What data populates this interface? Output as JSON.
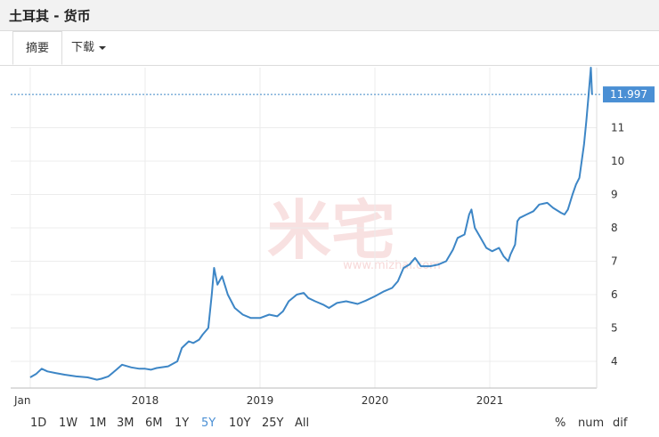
{
  "header": {
    "title": "土耳其 - 货币"
  },
  "tabs": {
    "summary": "摘要",
    "download": "下载"
  },
  "watermark": {
    "text": "米宅",
    "url": "www.mizhai.com"
  },
  "ranges": [
    "1D",
    "1W",
    "1M",
    "3M",
    "6M",
    "1Y",
    "5Y",
    "10Y",
    "25Y",
    "All"
  ],
  "active_range": "5Y",
  "tools": [
    "%",
    "num",
    "dif"
  ],
  "colors": {
    "line": "#3d86c6",
    "accent": "#4a8fd4",
    "watermark": "#f4c9c9"
  },
  "chart_data": {
    "type": "line",
    "title": "",
    "xlabel": "",
    "ylabel": "",
    "x_tick_labels": [
      "Jan",
      "2018",
      "2019",
      "2020",
      "2021"
    ],
    "y_tick_labels": [
      "4",
      "5",
      "6",
      "7",
      "8",
      "9",
      "10",
      "11"
    ],
    "ylim": [
      3.2,
      12.8
    ],
    "current_value": "11.997",
    "series": [
      {
        "values": [
          [
            2017.0,
            3.52
          ],
          [
            2017.05,
            3.62
          ],
          [
            2017.1,
            3.78
          ],
          [
            2017.15,
            3.7
          ],
          [
            2017.22,
            3.65
          ],
          [
            2017.3,
            3.6
          ],
          [
            2017.4,
            3.55
          ],
          [
            2017.5,
            3.52
          ],
          [
            2017.58,
            3.45
          ],
          [
            2017.62,
            3.48
          ],
          [
            2017.68,
            3.55
          ],
          [
            2017.75,
            3.75
          ],
          [
            2017.8,
            3.9
          ],
          [
            2017.88,
            3.82
          ],
          [
            2017.95,
            3.78
          ],
          [
            2018.0,
            3.78
          ],
          [
            2018.05,
            3.75
          ],
          [
            2018.1,
            3.8
          ],
          [
            2018.2,
            3.85
          ],
          [
            2018.28,
            4.0
          ],
          [
            2018.32,
            4.4
          ],
          [
            2018.38,
            4.6
          ],
          [
            2018.42,
            4.55
          ],
          [
            2018.47,
            4.65
          ],
          [
            2018.5,
            4.8
          ],
          [
            2018.55,
            5.0
          ],
          [
            2018.58,
            6.0
          ],
          [
            2018.6,
            6.8
          ],
          [
            2018.63,
            6.3
          ],
          [
            2018.67,
            6.55
          ],
          [
            2018.72,
            6.0
          ],
          [
            2018.78,
            5.6
          ],
          [
            2018.85,
            5.4
          ],
          [
            2018.92,
            5.3
          ],
          [
            2019.0,
            5.3
          ],
          [
            2019.08,
            5.4
          ],
          [
            2019.15,
            5.35
          ],
          [
            2019.2,
            5.5
          ],
          [
            2019.25,
            5.8
          ],
          [
            2019.32,
            6.0
          ],
          [
            2019.38,
            6.05
          ],
          [
            2019.42,
            5.9
          ],
          [
            2019.48,
            5.8
          ],
          [
            2019.55,
            5.7
          ],
          [
            2019.6,
            5.6
          ],
          [
            2019.67,
            5.75
          ],
          [
            2019.75,
            5.8
          ],
          [
            2019.85,
            5.72
          ],
          [
            2019.92,
            5.82
          ],
          [
            2020.0,
            5.95
          ],
          [
            2020.08,
            6.1
          ],
          [
            2020.15,
            6.2
          ],
          [
            2020.2,
            6.4
          ],
          [
            2020.25,
            6.8
          ],
          [
            2020.3,
            6.9
          ],
          [
            2020.35,
            7.1
          ],
          [
            2020.4,
            6.85
          ],
          [
            2020.48,
            6.85
          ],
          [
            2020.55,
            6.9
          ],
          [
            2020.62,
            7.0
          ],
          [
            2020.68,
            7.35
          ],
          [
            2020.72,
            7.7
          ],
          [
            2020.78,
            7.8
          ],
          [
            2020.82,
            8.4
          ],
          [
            2020.84,
            8.55
          ],
          [
            2020.87,
            8.0
          ],
          [
            2020.92,
            7.7
          ],
          [
            2020.97,
            7.4
          ],
          [
            2021.02,
            7.3
          ],
          [
            2021.08,
            7.4
          ],
          [
            2021.12,
            7.15
          ],
          [
            2021.16,
            7.0
          ],
          [
            2021.18,
            7.2
          ],
          [
            2021.22,
            7.5
          ],
          [
            2021.24,
            8.2
          ],
          [
            2021.26,
            8.3
          ],
          [
            2021.32,
            8.4
          ],
          [
            2021.38,
            8.5
          ],
          [
            2021.43,
            8.7
          ],
          [
            2021.5,
            8.75
          ],
          [
            2021.55,
            8.6
          ],
          [
            2021.62,
            8.45
          ],
          [
            2021.65,
            8.4
          ],
          [
            2021.68,
            8.55
          ],
          [
            2021.72,
            9.0
          ],
          [
            2021.75,
            9.3
          ],
          [
            2021.78,
            9.5
          ],
          [
            2021.8,
            10.0
          ],
          [
            2021.82,
            10.5
          ],
          [
            2021.84,
            11.2
          ],
          [
            2021.86,
            12.0
          ],
          [
            2021.88,
            12.8
          ],
          [
            2021.89,
            12.0
          ]
        ]
      }
    ]
  }
}
